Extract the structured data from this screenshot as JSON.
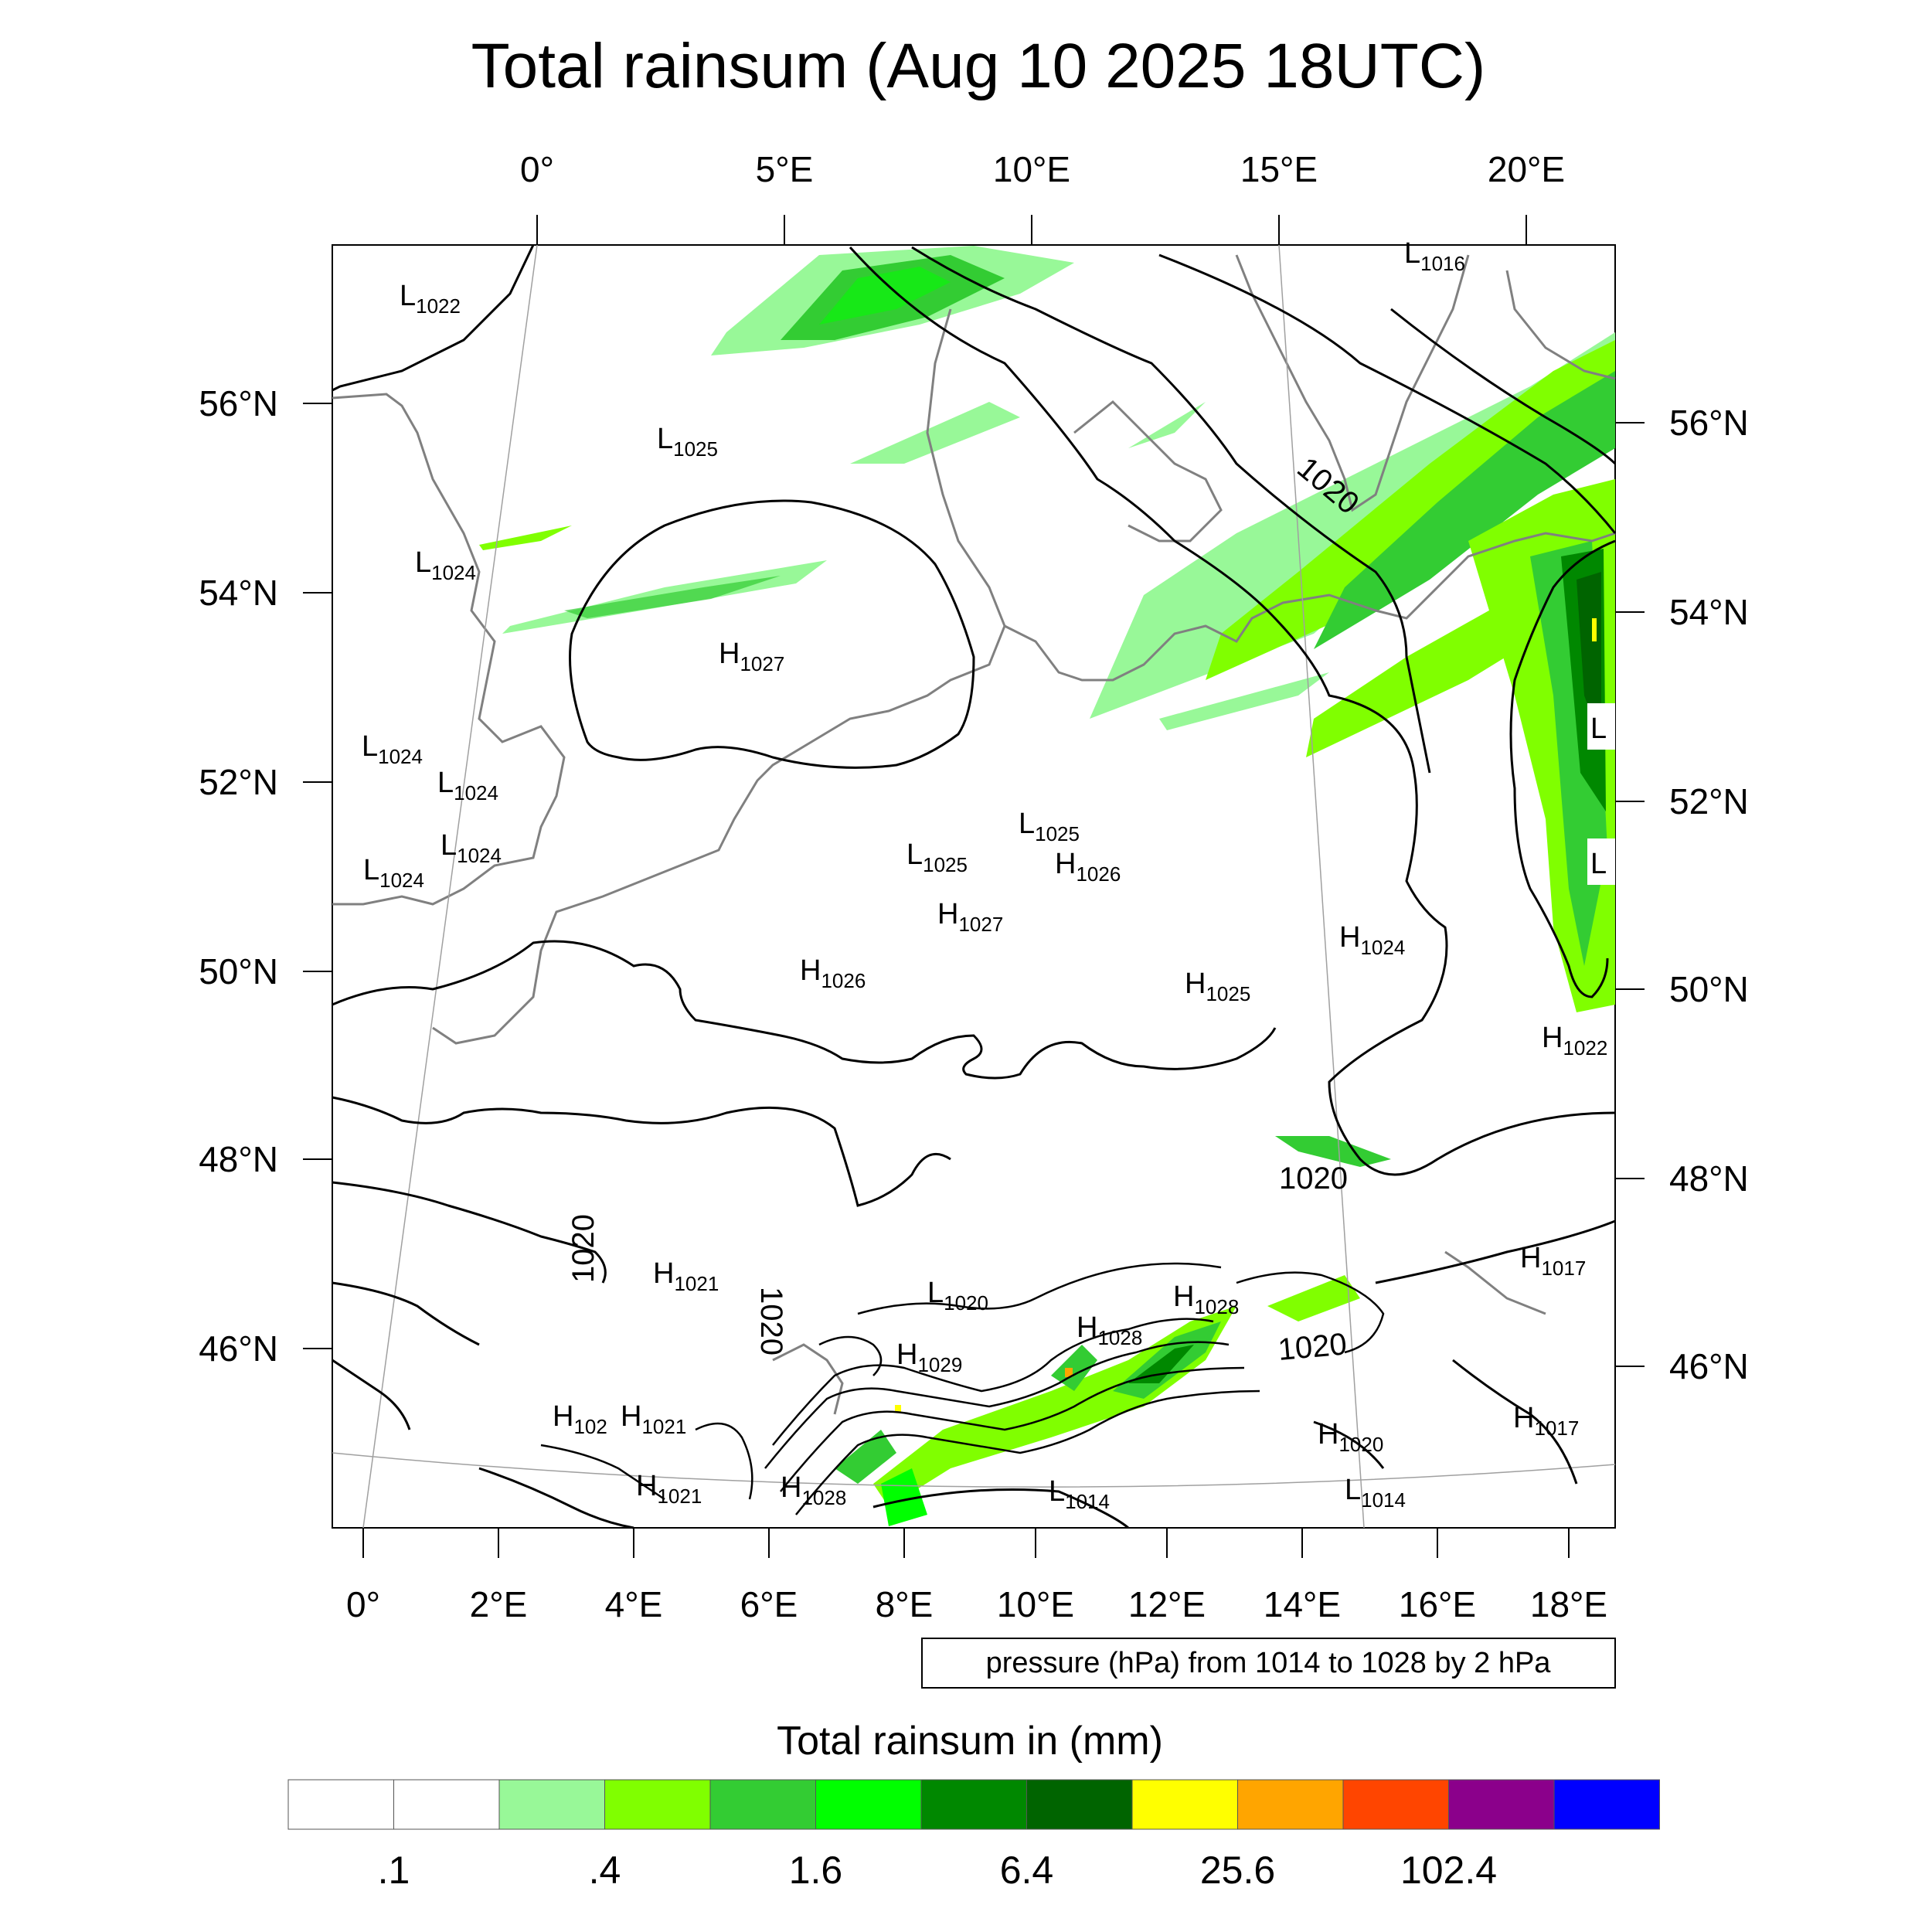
{
  "title": "Total rainsum (Aug 10 2025 18UTC)",
  "top_lon_labels": [
    "0°",
    "5°E",
    "10°E",
    "15°E",
    "20°E"
  ],
  "bottom_lon_labels": [
    "0°",
    "2°E",
    "4°E",
    "6°E",
    "8°E",
    "10°E",
    "12°E",
    "14°E",
    "16°E",
    "18°E"
  ],
  "left_lat_labels": [
    "56°N",
    "54°N",
    "52°N",
    "50°N",
    "48°N",
    "46°N"
  ],
  "right_lat_labels": [
    "56°N",
    "54°N",
    "52°N",
    "50°N",
    "48°N",
    "46°N"
  ],
  "pressure_centers": [
    {
      "t": "L",
      "v": "1022"
    },
    {
      "t": "L",
      "v": "1016"
    },
    {
      "t": "L",
      "v": "1025"
    },
    {
      "t": "L",
      "v": "1024"
    },
    {
      "t": "H",
      "v": "1027"
    },
    {
      "t": "L",
      "v": "1024"
    },
    {
      "t": "L",
      "v": "1024"
    },
    {
      "t": "L",
      "v": "1025"
    },
    {
      "t": "L",
      "v": "1025"
    },
    {
      "t": "H",
      "v": "1026"
    },
    {
      "t": "L",
      "v": "1024"
    },
    {
      "t": "L",
      "v": "1024"
    },
    {
      "t": "H",
      "v": "1027"
    },
    {
      "t": "H",
      "v": "1026"
    },
    {
      "t": "H",
      "v": "1024"
    },
    {
      "t": "H",
      "v": "1025"
    },
    {
      "t": "H",
      "v": "1022"
    },
    {
      "t": "H",
      "v": "1021"
    },
    {
      "t": "L",
      "v": "1020"
    },
    {
      "t": "H",
      "v": "1028"
    },
    {
      "t": "H",
      "v": "1028"
    },
    {
      "t": "H",
      "v": "1029"
    },
    {
      "t": "H",
      "v": "1017"
    },
    {
      "t": "H",
      "v": "102"
    },
    {
      "t": "H",
      "v": "1021"
    },
    {
      "t": "H",
      "v": "1021"
    },
    {
      "t": "H",
      "v": "1028"
    },
    {
      "t": "L",
      "v": "1014"
    },
    {
      "t": "H",
      "v": "1020"
    },
    {
      "t": "L",
      "v": "1014"
    },
    {
      "t": "H",
      "v": "1017"
    },
    {
      "t": "L",
      "v": ""
    },
    {
      "t": "L",
      "v": ""
    }
  ],
  "isobar_labels": [
    "1020",
    "1020",
    "1020",
    "1020",
    "1020"
  ],
  "contour_info": "pressure (hPa) from 1014 to 1028 by 2 hPa",
  "colorbar": {
    "title": "Total rainsum in (mm)",
    "colors": [
      "#ffffff",
      "#ffffff",
      "#98f898",
      "#80ff00",
      "#33cc33",
      "#00ff00",
      "#008800",
      "#006400",
      "#ffff00",
      "#ffa500",
      "#ff4500",
      "#8b008b",
      "#0000ff"
    ],
    "tick_labels": [
      ".1",
      ".4",
      "1.6",
      "6.4",
      "25.6",
      "102.4"
    ]
  }
}
